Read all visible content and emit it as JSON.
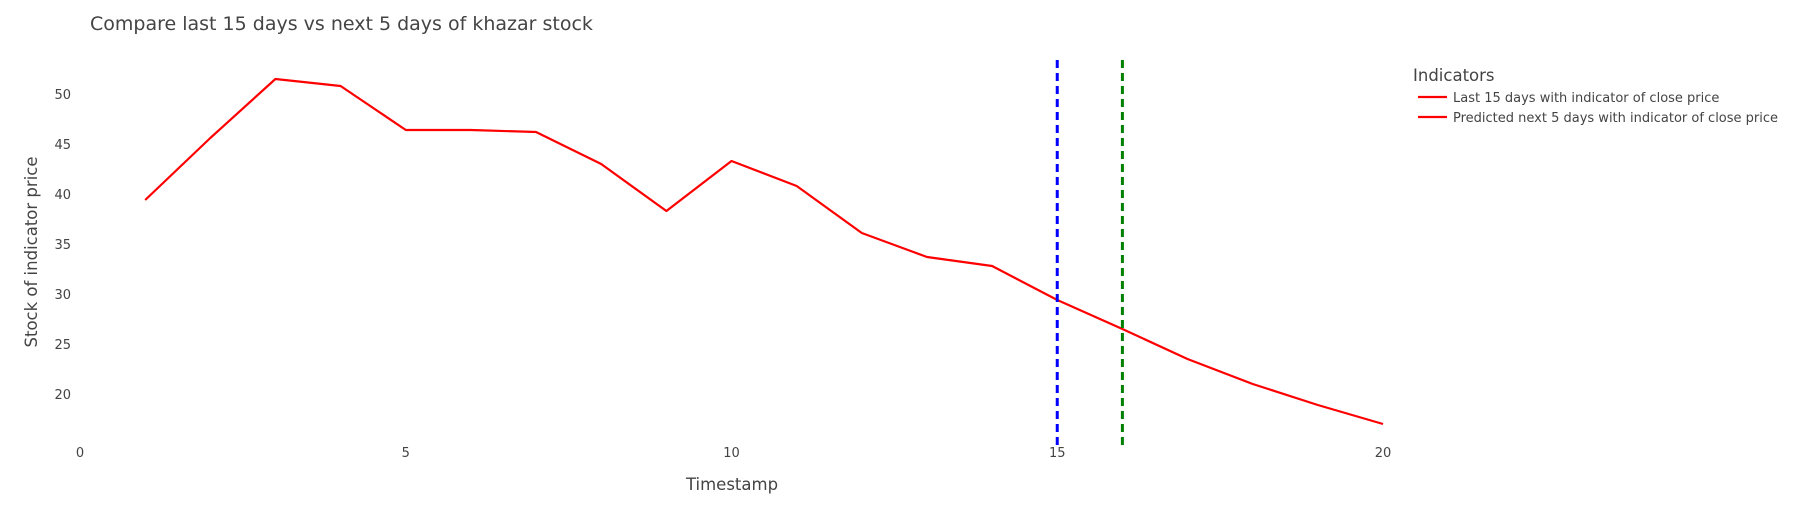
{
  "chart_data": {
    "type": "line",
    "title": "Compare last 15 days vs next 5 days of khazar stock",
    "xlabel": "Timestamp",
    "ylabel": "Stock of indicator price",
    "xlim": [
      0,
      20
    ],
    "ylim": [
      15,
      52.5
    ],
    "xticks": [
      0,
      5,
      10,
      15,
      20
    ],
    "yticks": [
      20,
      25,
      30,
      35,
      40,
      45,
      50
    ],
    "grid": false,
    "legend": {
      "title": "Indicators",
      "placement": "top-right, outside plot"
    },
    "series": [
      {
        "name": "Last 15 days with indicator of close price",
        "color": "#ff0000",
        "x": [
          1,
          2,
          3,
          4,
          5,
          6,
          7,
          8,
          9,
          10,
          11,
          12,
          13,
          14,
          15
        ],
        "y": [
          39.4,
          45.6,
          51.5,
          50.8,
          46.4,
          46.4,
          46.2,
          43.0,
          38.3,
          43.3,
          40.8,
          36.1,
          33.7,
          32.8,
          29.4
        ]
      },
      {
        "name": "Predicted next 5 days with indicator of close price",
        "color": "#ff0000",
        "x": [
          15,
          16,
          17,
          18,
          19,
          20
        ],
        "y": [
          29.4,
          26.5,
          23.5,
          21.0,
          18.9,
          17.0
        ]
      }
    ],
    "vlines": [
      {
        "x": 15,
        "color": "#0000ff",
        "style": "dashed"
      },
      {
        "x": 16,
        "color": "#008000",
        "style": "dashed"
      }
    ]
  }
}
